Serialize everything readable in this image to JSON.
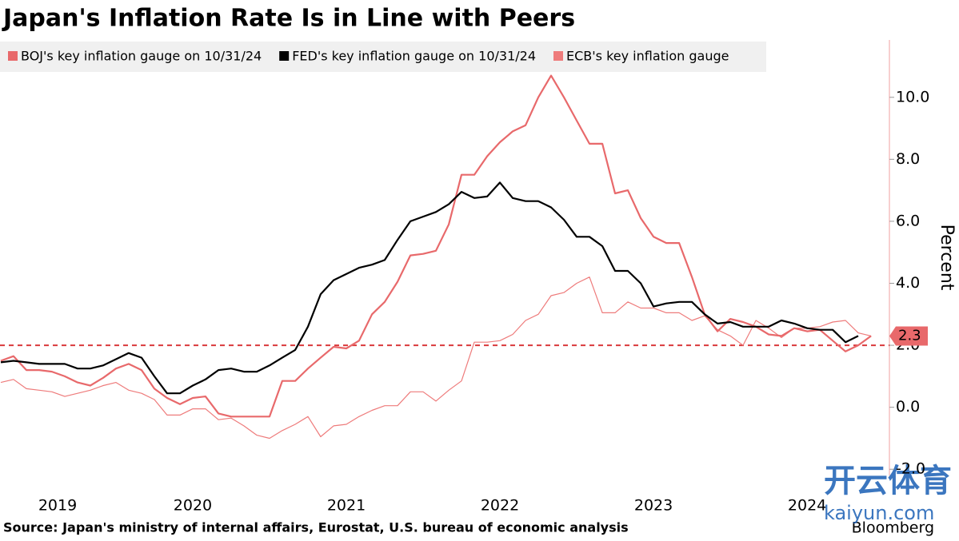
{
  "chart_data": {
    "type": "line",
    "title": "Japan's Inflation Rate Is in Line with Peers",
    "y_label": "Percent",
    "source": "Source: Japan's ministry of internal affairs, Eurostat, U.S. bureau of economic analysis",
    "brand": "Bloomberg",
    "watermark": [
      "开云体育",
      "kaiyun.com"
    ],
    "x": [
      2019.25,
      2019.333,
      2019.417,
      2019.5,
      2019.583,
      2019.667,
      2019.75,
      2019.833,
      2019.917,
      2020.0,
      2020.083,
      2020.167,
      2020.25,
      2020.333,
      2020.417,
      2020.5,
      2020.583,
      2020.667,
      2020.75,
      2020.833,
      2020.917,
      2021.0,
      2021.083,
      2021.167,
      2021.25,
      2021.333,
      2021.417,
      2021.5,
      2021.583,
      2021.667,
      2021.75,
      2021.833,
      2021.917,
      2022.0,
      2022.083,
      2022.167,
      2022.25,
      2022.333,
      2022.417,
      2022.5,
      2022.583,
      2022.667,
      2022.75,
      2022.833,
      2022.917,
      2023.0,
      2023.083,
      2023.167,
      2023.25,
      2023.333,
      2023.417,
      2023.5,
      2023.583,
      2023.667,
      2023.75,
      2023.833,
      2023.917,
      2024.0,
      2024.083,
      2024.167,
      2024.25,
      2024.333,
      2024.417,
      2024.5,
      2024.583,
      2024.667,
      2024.75,
      2024.833,
      2024.917
    ],
    "series": [
      {
        "name": "BOJ's key inflation gauge on 10/31/24",
        "color": "#e8696b",
        "width": 2.2,
        "values": [
          1.5,
          1.65,
          1.2,
          1.2,
          1.15,
          1.0,
          0.8,
          0.7,
          0.95,
          1.25,
          1.4,
          1.2,
          0.6,
          0.3,
          0.1,
          0.3,
          0.35,
          -0.2,
          -0.3,
          -0.3,
          -0.3,
          -0.3,
          0.85,
          0.85,
          1.25,
          1.6,
          1.95,
          1.9,
          2.15,
          3.0,
          3.4,
          4.05,
          4.9,
          4.95,
          5.05,
          5.9,
          7.5,
          7.5,
          8.1,
          8.55,
          8.9,
          9.1,
          10.0,
          10.7,
          10.0,
          9.25,
          8.5,
          8.5,
          6.9,
          7.0,
          6.1,
          5.5,
          5.3,
          5.3,
          4.2,
          3.0,
          2.45,
          2.85,
          2.75,
          2.6,
          2.35,
          2.3,
          2.55,
          2.45,
          2.5,
          2.15,
          1.8,
          2.0,
          2.3
        ]
      },
      {
        "name": "FED's key inflation gauge on 10/31/24",
        "color": "#000000",
        "width": 2.2,
        "values": [
          1.45,
          1.5,
          1.45,
          1.4,
          1.4,
          1.4,
          1.25,
          1.25,
          1.35,
          1.55,
          1.75,
          1.6,
          1.0,
          0.45,
          0.45,
          0.7,
          0.9,
          1.2,
          1.25,
          1.15,
          1.15,
          1.35,
          1.6,
          1.85,
          2.6,
          3.65,
          4.1,
          4.3,
          4.5,
          4.6,
          4.75,
          5.4,
          6.0,
          6.15,
          6.3,
          6.55,
          6.95,
          6.75,
          6.8,
          7.25,
          6.75,
          6.65,
          6.65,
          6.45,
          6.05,
          5.5,
          5.5,
          5.2,
          4.4,
          4.4,
          4.0,
          3.25,
          3.35,
          3.4,
          3.4,
          3.0,
          2.7,
          2.75,
          2.6,
          2.6,
          2.6,
          2.8,
          2.7,
          2.55,
          2.5,
          2.5,
          2.1,
          2.3,
          null
        ]
      },
      {
        "name": "ECB's key inflation gauge",
        "color": "#ee7b7b",
        "width": 1.2,
        "values": [
          0.8,
          0.9,
          0.6,
          0.55,
          0.5,
          0.35,
          0.45,
          0.55,
          0.7,
          0.8,
          0.55,
          0.45,
          0.25,
          -0.25,
          -0.25,
          -0.05,
          -0.05,
          -0.4,
          -0.35,
          -0.6,
          -0.9,
          -1.0,
          -0.75,
          -0.55,
          -0.3,
          -0.95,
          -0.6,
          -0.55,
          -0.3,
          -0.1,
          0.05,
          0.05,
          0.5,
          0.5,
          0.2,
          0.55,
          0.85,
          2.1,
          2.1,
          2.15,
          2.35,
          2.8,
          3.0,
          3.6,
          3.7,
          4.0,
          4.2,
          3.05,
          3.05,
          3.4,
          3.2,
          3.2,
          3.05,
          3.05,
          2.8,
          2.95,
          2.5,
          2.3,
          2.0,
          2.8,
          2.55,
          2.25,
          2.55,
          2.55,
          2.6,
          2.75,
          2.8,
          2.4,
          2.3
        ]
      }
    ],
    "reference_line": 2.0,
    "end_label": 2.3,
    "xlim": [
      2019.245,
      2025.036
    ],
    "xticks": [
      {
        "value": 2019.62,
        "label": "2019"
      },
      {
        "value": 2020.5,
        "label": "2020"
      },
      {
        "value": 2021.5,
        "label": "2021"
      },
      {
        "value": 2022.5,
        "label": "2022"
      },
      {
        "value": 2023.5,
        "label": "2023"
      },
      {
        "value": 2024.5,
        "label": "2024"
      }
    ],
    "ylim": [
      -2.2,
      11.85
    ],
    "yticks": [
      {
        "value": -2,
        "label": "-2.0"
      },
      {
        "value": 0,
        "label": "0.0"
      },
      {
        "value": 2,
        "label": "2.0"
      },
      {
        "value": 4,
        "label": "4.0"
      },
      {
        "value": 6,
        "label": "6.0"
      },
      {
        "value": 8,
        "label": "8.0"
      },
      {
        "value": 10,
        "label": "10.0"
      }
    ]
  }
}
